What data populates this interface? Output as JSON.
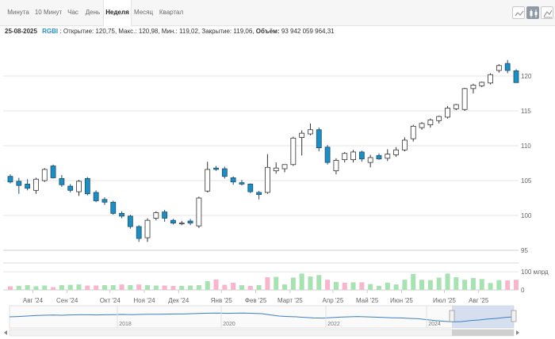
{
  "tabs": [
    {
      "label": "Минута",
      "active": false
    },
    {
      "label": "10 Минут",
      "active": false
    },
    {
      "label": "Час",
      "active": false
    },
    {
      "label": "День",
      "active": false
    },
    {
      "label": "Неделя",
      "active": true
    },
    {
      "label": "Месяц",
      "active": false
    },
    {
      "label": "Квартал",
      "active": false
    }
  ],
  "toolbar": {
    "tools": [
      {
        "icon": "line-chart-icon",
        "active": false
      },
      {
        "icon": "candlestick-chart-icon",
        "active": true
      },
      {
        "icon": "bar-chart-icon",
        "active": false
      }
    ]
  },
  "info": {
    "date": "25-08-2025",
    "ticker": "RGBI",
    "open_label": "Открытие:",
    "open": "120,75",
    "high_label": "Макс.:",
    "high": "120,98",
    "low_label": "Мин.:",
    "low": "119,02",
    "close_label": "Закрытие:",
    "close": "119,06",
    "volume_label": "Объём:",
    "volume": "93 942 059 964,31"
  },
  "colors": {
    "up_fill": "#ffffff",
    "up_stroke": "#333333",
    "down_fill": "#1b8fc4",
    "down_stroke": "#1f4f6e",
    "vol_up": "#a6e3b0",
    "vol_down": "#f7b6cc",
    "navigator_line": "#3d7fc0",
    "navigator_window": "#c5d3ea"
  },
  "chart_data": {
    "type": "candlestick",
    "ylim": [
      95,
      125
    ],
    "yticks": [
      "95",
      "100",
      "105",
      "110",
      "115",
      "120"
    ],
    "x_month_labels": [
      "Авг '24",
      "Сен '24",
      "Окт '24",
      "Ноя '24",
      "Дек '24",
      "Янв '25",
      "Фев '25",
      "Март '25",
      "Апр '25",
      "Май '25",
      "Июн '25",
      "Июл '25",
      "Авг '25"
    ],
    "x_month_start_index": [
      3,
      7,
      12,
      16,
      20,
      25,
      29,
      33,
      38,
      42,
      46,
      51,
      55
    ],
    "candles": [
      {
        "o": 105.6,
        "h": 105.9,
        "l": 104.6,
        "c": 104.8
      },
      {
        "o": 104.9,
        "h": 105.4,
        "l": 103.1,
        "c": 104.3
      },
      {
        "o": 104.5,
        "h": 105.2,
        "l": 103.6,
        "c": 103.9
      },
      {
        "o": 103.6,
        "h": 105.4,
        "l": 103.1,
        "c": 105.2
      },
      {
        "o": 105.0,
        "h": 106.8,
        "l": 104.8,
        "c": 106.6
      },
      {
        "o": 107.1,
        "h": 107.3,
        "l": 105.3,
        "c": 105.4
      },
      {
        "o": 105.3,
        "h": 105.8,
        "l": 104.1,
        "c": 104.4
      },
      {
        "o": 104.2,
        "h": 104.5,
        "l": 103.3,
        "c": 103.6
      },
      {
        "o": 103.4,
        "h": 105.1,
        "l": 102.8,
        "c": 104.9
      },
      {
        "o": 105.3,
        "h": 105.5,
        "l": 102.9,
        "c": 103.1
      },
      {
        "o": 103.3,
        "h": 103.6,
        "l": 101.9,
        "c": 102.1
      },
      {
        "o": 102.3,
        "h": 102.6,
        "l": 101.5,
        "c": 101.9
      },
      {
        "o": 101.9,
        "h": 102.1,
        "l": 100.1,
        "c": 100.3
      },
      {
        "o": 100.3,
        "h": 100.6,
        "l": 99.6,
        "c": 99.9
      },
      {
        "o": 99.9,
        "h": 100.1,
        "l": 98.1,
        "c": 98.4
      },
      {
        "o": 98.4,
        "h": 98.6,
        "l": 96.2,
        "c": 96.7
      },
      {
        "o": 96.8,
        "h": 99.6,
        "l": 96.2,
        "c": 99.3
      },
      {
        "o": 99.6,
        "h": 100.6,
        "l": 99.3,
        "c": 100.4
      },
      {
        "o": 100.5,
        "h": 100.8,
        "l": 99.1,
        "c": 99.6
      },
      {
        "o": 99.3,
        "h": 99.5,
        "l": 98.7,
        "c": 98.9
      },
      {
        "o": 98.8,
        "h": 99.2,
        "l": 98.6,
        "c": 98.9
      },
      {
        "o": 99.2,
        "h": 99.5,
        "l": 98.6,
        "c": 98.9
      },
      {
        "o": 98.5,
        "h": 102.7,
        "l": 98.2,
        "c": 102.5
      },
      {
        "o": 103.5,
        "h": 107.7,
        "l": 103.3,
        "c": 106.6
      },
      {
        "o": 106.8,
        "h": 107.1,
        "l": 106.4,
        "c": 106.6
      },
      {
        "o": 106.7,
        "h": 107.0,
        "l": 105.3,
        "c": 105.6
      },
      {
        "o": 105.4,
        "h": 105.6,
        "l": 104.4,
        "c": 104.8
      },
      {
        "o": 104.7,
        "h": 105.1,
        "l": 104.3,
        "c": 104.5
      },
      {
        "o": 104.5,
        "h": 104.6,
        "l": 103.2,
        "c": 103.4
      },
      {
        "o": 103.3,
        "h": 103.5,
        "l": 102.3,
        "c": 103.0
      },
      {
        "o": 103.3,
        "h": 108.8,
        "l": 103.1,
        "c": 106.9
      },
      {
        "o": 106.4,
        "h": 107.6,
        "l": 106.0,
        "c": 106.8
      },
      {
        "o": 106.7,
        "h": 107.3,
        "l": 106.2,
        "c": 107.3
      },
      {
        "o": 107.3,
        "h": 111.3,
        "l": 107.1,
        "c": 111.1
      },
      {
        "o": 111.2,
        "h": 112.2,
        "l": 108.6,
        "c": 111.8
      },
      {
        "o": 111.7,
        "h": 113.2,
        "l": 111.5,
        "c": 112.3
      },
      {
        "o": 112.3,
        "h": 112.6,
        "l": 109.2,
        "c": 109.7
      },
      {
        "o": 109.8,
        "h": 110.1,
        "l": 107.3,
        "c": 107.6
      },
      {
        "o": 106.4,
        "h": 108.2,
        "l": 105.9,
        "c": 107.9
      },
      {
        "o": 108.0,
        "h": 109.1,
        "l": 107.6,
        "c": 108.9
      },
      {
        "o": 108.0,
        "h": 109.4,
        "l": 107.6,
        "c": 109.1
      },
      {
        "o": 109.1,
        "h": 109.3,
        "l": 107.7,
        "c": 108.1
      },
      {
        "o": 107.6,
        "h": 108.7,
        "l": 106.9,
        "c": 108.3
      },
      {
        "o": 108.6,
        "h": 108.9,
        "l": 108.0,
        "c": 108.1
      },
      {
        "o": 108.2,
        "h": 109.5,
        "l": 107.8,
        "c": 108.8
      },
      {
        "o": 108.7,
        "h": 109.8,
        "l": 108.4,
        "c": 109.4
      },
      {
        "o": 109.4,
        "h": 111.2,
        "l": 109.2,
        "c": 110.8
      },
      {
        "o": 111.0,
        "h": 113.0,
        "l": 110.6,
        "c": 112.8
      },
      {
        "o": 112.6,
        "h": 113.4,
        "l": 112.3,
        "c": 113.2
      },
      {
        "o": 113.0,
        "h": 113.9,
        "l": 112.6,
        "c": 113.7
      },
      {
        "o": 113.6,
        "h": 114.3,
        "l": 113.2,
        "c": 114.2
      },
      {
        "o": 114.1,
        "h": 115.7,
        "l": 113.9,
        "c": 115.4
      },
      {
        "o": 115.3,
        "h": 116.0,
        "l": 115.1,
        "c": 115.9
      },
      {
        "o": 115.2,
        "h": 118.3,
        "l": 115.0,
        "c": 118.2
      },
      {
        "o": 118.2,
        "h": 118.9,
        "l": 117.5,
        "c": 118.7
      },
      {
        "o": 118.6,
        "h": 119.2,
        "l": 118.4,
        "c": 119.1
      },
      {
        "o": 119.0,
        "h": 120.4,
        "l": 118.8,
        "c": 120.2
      },
      {
        "o": 120.8,
        "h": 121.7,
        "l": 120.5,
        "c": 121.5
      },
      {
        "o": 121.8,
        "h": 122.3,
        "l": 120.4,
        "c": 120.8
      },
      {
        "o": 120.75,
        "h": 120.98,
        "l": 119.02,
        "c": 119.06
      }
    ],
    "volume": {
      "ytick_labels": [
        "0",
        "100 млрд"
      ],
      "ymax": 140,
      "values": [
        20,
        22,
        26,
        20,
        24,
        15,
        26,
        28,
        30,
        24,
        24,
        26,
        26,
        30,
        26,
        30,
        26,
        24,
        24,
        22,
        22,
        24,
        26,
        48,
        58,
        28,
        40,
        26,
        22,
        26,
        70,
        72,
        30,
        68,
        90,
        74,
        82,
        56,
        44,
        40,
        42,
        42,
        32,
        22,
        40,
        30,
        56,
        88,
        56,
        54,
        68,
        90,
        70,
        56,
        66,
        60,
        38,
        54,
        52,
        56
      ],
      "up": [
        false,
        true,
        true,
        true,
        true,
        false,
        true,
        true,
        true,
        false,
        false,
        true,
        true,
        false,
        true,
        false,
        true,
        true,
        false,
        false,
        true,
        true,
        true,
        true,
        false,
        false,
        false,
        true,
        false,
        true,
        false,
        true,
        true,
        true,
        true,
        true,
        true,
        false,
        true,
        false,
        true,
        false,
        true,
        true,
        true,
        true,
        true,
        true,
        true,
        true,
        true,
        true,
        true,
        true,
        true,
        true,
        true,
        true,
        false,
        false
      ]
    },
    "navigator": {
      "year_labels": [
        "2018",
        "2020",
        "2022",
        "2024"
      ],
      "values": [
        0.5,
        0.52,
        0.55,
        0.58,
        0.6,
        0.61,
        0.6,
        0.62,
        0.63,
        0.63,
        0.62,
        0.63,
        0.64,
        0.65,
        0.64,
        0.65,
        0.66,
        0.66,
        0.67,
        0.68,
        0.68,
        0.7,
        0.72,
        0.73,
        0.74,
        0.72,
        0.73,
        0.74,
        0.72,
        0.7,
        0.62,
        0.55,
        0.52,
        0.5,
        0.46,
        0.43,
        0.42,
        0.45,
        0.48,
        0.5,
        0.52,
        0.5,
        0.48,
        0.46,
        0.44,
        0.43,
        0.4,
        0.38,
        0.32,
        0.26,
        0.22,
        0.18,
        0.2,
        0.26,
        0.3,
        0.36,
        0.4,
        0.46,
        0.5
      ]
    }
  }
}
